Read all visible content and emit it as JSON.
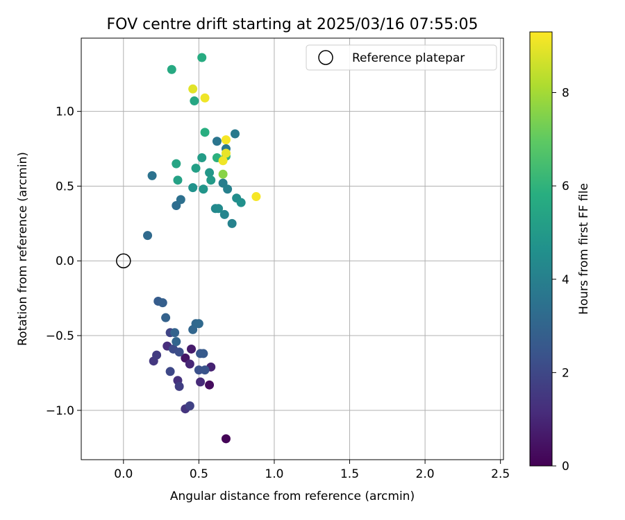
{
  "chart_data": {
    "type": "scatter",
    "title": "FOV centre drift starting at 2025/03/16 07:55:05",
    "xlabel": "Angular distance from reference (arcmin)",
    "ylabel": "Rotation from reference (arcmin)",
    "xlim": [
      -0.28,
      2.52
    ],
    "ylim": [
      -1.33,
      1.49
    ],
    "xticks": [
      {
        "value": 0.0,
        "label": "0.0"
      },
      {
        "value": 0.5,
        "label": "0.5"
      },
      {
        "value": 1.0,
        "label": "1.0"
      },
      {
        "value": 1.5,
        "label": "1.5"
      },
      {
        "value": 2.0,
        "label": "2.0"
      },
      {
        "value": 2.5,
        "label": "2.5"
      }
    ],
    "yticks": [
      {
        "value": -1.0,
        "label": "−1.0"
      },
      {
        "value": -0.5,
        "label": "−0.5"
      },
      {
        "value": 0.0,
        "label": "0.0"
      },
      {
        "value": 0.5,
        "label": "0.5"
      },
      {
        "value": 1.0,
        "label": "1.0"
      }
    ],
    "grid": true,
    "legend": {
      "position": "top-right",
      "entries": [
        "Reference platepar"
      ]
    },
    "reference_point": {
      "name": "Reference platepar",
      "x": 0.0,
      "y": 0.0
    },
    "colorbar": {
      "label": "Hours from first FF file",
      "colormap": "viridis",
      "range": [
        0,
        9.3
      ],
      "ticks": [
        {
          "value": 0,
          "label": "0"
        },
        {
          "value": 2,
          "label": "2"
        },
        {
          "value": 4,
          "label": "4"
        },
        {
          "value": 6,
          "label": "6"
        },
        {
          "value": 8,
          "label": "8"
        }
      ]
    },
    "points": [
      {
        "x": 0.68,
        "y": -1.19,
        "hours": 0.1
      },
      {
        "x": 0.57,
        "y": -0.83,
        "hours": 0.3
      },
      {
        "x": 0.41,
        "y": -0.65,
        "hours": 0.5
      },
      {
        "x": 0.45,
        "y": -0.59,
        "hours": 0.7
      },
      {
        "x": 0.58,
        "y": -0.71,
        "hours": 0.9
      },
      {
        "x": 0.44,
        "y": -0.69,
        "hours": 1.0
      },
      {
        "x": 0.51,
        "y": -0.81,
        "hours": 1.1
      },
      {
        "x": 0.29,
        "y": -0.57,
        "hours": 1.2
      },
      {
        "x": 0.36,
        "y": -0.8,
        "hours": 1.3
      },
      {
        "x": 0.41,
        "y": -0.99,
        "hours": 1.4
      },
      {
        "x": 0.2,
        "y": -0.67,
        "hours": 1.5
      },
      {
        "x": 0.22,
        "y": -0.63,
        "hours": 1.6
      },
      {
        "x": 0.37,
        "y": -0.84,
        "hours": 1.7
      },
      {
        "x": 0.44,
        "y": -0.97,
        "hours": 1.8
      },
      {
        "x": 0.31,
        "y": -0.48,
        "hours": 1.9
      },
      {
        "x": 0.31,
        "y": -0.74,
        "hours": 2.0
      },
      {
        "x": 0.33,
        "y": -0.59,
        "hours": 2.1
      },
      {
        "x": 0.37,
        "y": -0.61,
        "hours": 2.2
      },
      {
        "x": 0.5,
        "y": -0.73,
        "hours": 2.3
      },
      {
        "x": 0.54,
        "y": -0.73,
        "hours": 2.4
      },
      {
        "x": 0.51,
        "y": -0.62,
        "hours": 2.5
      },
      {
        "x": 0.53,
        "y": -0.62,
        "hours": 2.6
      },
      {
        "x": 0.23,
        "y": -0.27,
        "hours": 2.7
      },
      {
        "x": 0.26,
        "y": -0.28,
        "hours": 2.8
      },
      {
        "x": 0.28,
        "y": -0.38,
        "hours": 2.9
      },
      {
        "x": 0.34,
        "y": -0.48,
        "hours": 2.95
      },
      {
        "x": 0.35,
        "y": -0.54,
        "hours": 3.0
      },
      {
        "x": 0.46,
        "y": -0.46,
        "hours": 3.05
      },
      {
        "x": 0.48,
        "y": -0.42,
        "hours": 3.1
      },
      {
        "x": 0.5,
        "y": -0.42,
        "hours": 3.15
      },
      {
        "x": 0.16,
        "y": 0.17,
        "hours": 3.2
      },
      {
        "x": 0.35,
        "y": 0.37,
        "hours": 3.3
      },
      {
        "x": 0.38,
        "y": 0.41,
        "hours": 3.4
      },
      {
        "x": 0.19,
        "y": 0.57,
        "hours": 3.5
      },
      {
        "x": 0.62,
        "y": 0.8,
        "hours": 3.6
      },
      {
        "x": 0.68,
        "y": 0.75,
        "hours": 3.7
      },
      {
        "x": 0.74,
        "y": 0.85,
        "hours": 3.8
      },
      {
        "x": 0.66,
        "y": 0.52,
        "hours": 3.9
      },
      {
        "x": 0.69,
        "y": 0.48,
        "hours": 4.0
      },
      {
        "x": 0.72,
        "y": 0.25,
        "hours": 4.1
      },
      {
        "x": 0.67,
        "y": 0.31,
        "hours": 4.2
      },
      {
        "x": 0.61,
        "y": 0.35,
        "hours": 4.3
      },
      {
        "x": 0.63,
        "y": 0.35,
        "hours": 4.4
      },
      {
        "x": 0.75,
        "y": 0.42,
        "hours": 4.5
      },
      {
        "x": 0.78,
        "y": 0.39,
        "hours": 4.6
      },
      {
        "x": 0.46,
        "y": 0.49,
        "hours": 4.7
      },
      {
        "x": 0.53,
        "y": 0.48,
        "hours": 4.8
      },
      {
        "x": 0.57,
        "y": 0.59,
        "hours": 4.9
      },
      {
        "x": 0.58,
        "y": 0.54,
        "hours": 5.0
      },
      {
        "x": 0.52,
        "y": 0.69,
        "hours": 5.1
      },
      {
        "x": 0.48,
        "y": 0.62,
        "hours": 5.2
      },
      {
        "x": 0.36,
        "y": 0.54,
        "hours": 5.3
      },
      {
        "x": 0.35,
        "y": 0.65,
        "hours": 5.4
      },
      {
        "x": 0.47,
        "y": 1.07,
        "hours": 5.5
      },
      {
        "x": 0.32,
        "y": 1.28,
        "hours": 5.6
      },
      {
        "x": 0.52,
        "y": 1.36,
        "hours": 5.7
      },
      {
        "x": 0.54,
        "y": 0.86,
        "hours": 5.8
      },
      {
        "x": 0.62,
        "y": 0.69,
        "hours": 5.9
      },
      {
        "x": 0.68,
        "y": 0.7,
        "hours": 6.0
      },
      {
        "x": 0.66,
        "y": 0.58,
        "hours": 7.6
      },
      {
        "x": 0.46,
        "y": 1.15,
        "hours": 8.9
      },
      {
        "x": 0.54,
        "y": 1.09,
        "hours": 9.1
      },
      {
        "x": 0.68,
        "y": 0.81,
        "hours": 9.2
      },
      {
        "x": 0.68,
        "y": 0.72,
        "hours": 9.0
      },
      {
        "x": 0.66,
        "y": 0.67,
        "hours": 9.1
      },
      {
        "x": 0.88,
        "y": 0.43,
        "hours": 9.2
      }
    ]
  }
}
